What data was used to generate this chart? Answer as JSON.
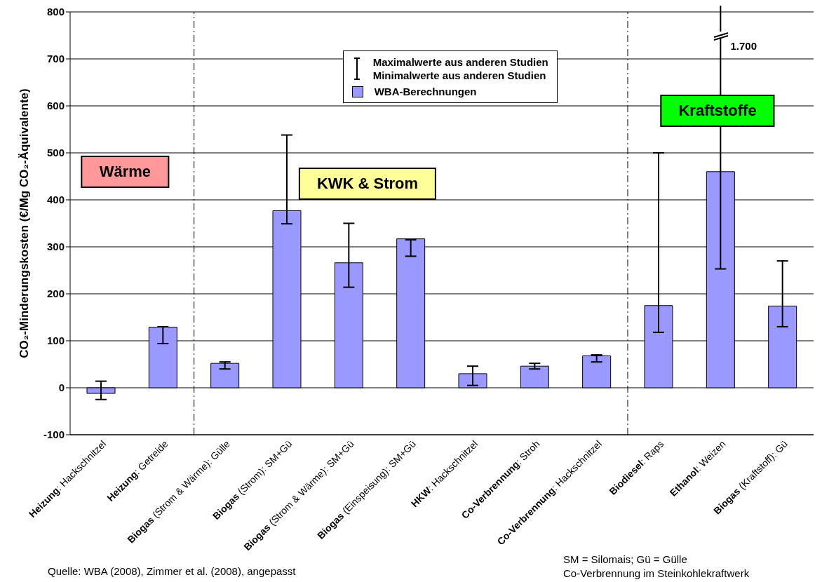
{
  "chart_data": {
    "type": "bar",
    "ylabel": "CO₂-Minderungskosten (€/Mg CO₂-Äquivalente)",
    "categories": [
      "Heizung: Hackschnitzel",
      "Heizung: Getreide",
      "Biogas (Strom & Wärme): Gülle",
      "Biogas (Strom): SM+Gü",
      "Biogas (Strom & Wärme): SM+Gü",
      "Biogas (Einspeisung): SM+Gü",
      "HKW: Hackschnitzel",
      "Co-Verbrennung: Stroh",
      "Co-Verbrennung: Hackschnitzel",
      "Biodiesel: Raps",
      "Ethanol: Weizen",
      "Biogas (Kraftstoff): Gü"
    ],
    "series": [
      {
        "name": "WBA-Berechnungen",
        "color": "#9999ff",
        "values": [
          -12,
          129,
          52,
          377,
          266,
          317,
          30,
          46,
          68,
          175,
          460,
          174
        ],
        "errors": [
          [
            -25,
            14
          ],
          [
            94,
            130
          ],
          [
            40,
            55
          ],
          [
            349,
            538
          ],
          [
            214,
            350
          ],
          [
            280,
            315
          ],
          [
            5,
            46
          ],
          [
            40,
            52
          ],
          [
            55,
            70
          ],
          [
            118,
            500
          ],
          [
            253,
            1700
          ],
          [
            130,
            270
          ]
        ]
      }
    ],
    "ylim": [
      -100,
      800
    ],
    "yticks": [
      -100,
      0,
      100,
      200,
      300,
      400,
      500,
      600,
      700,
      800
    ],
    "grid": "y",
    "legend": "top",
    "annotations": [
      "Wärme",
      "KWK & Strom",
      "Kraftstoffe",
      "Maximalwerte aus anderen Studien",
      "Minimalwerte aus anderen Studien",
      "1.700",
      "Quelle: WBA (2008),  Zimmer et al. (2008), angepasst",
      "SM = Silomais; Gü = Gülle",
      "Co-Verbrennung im Steinkohlekraftwerk"
    ]
  }
}
